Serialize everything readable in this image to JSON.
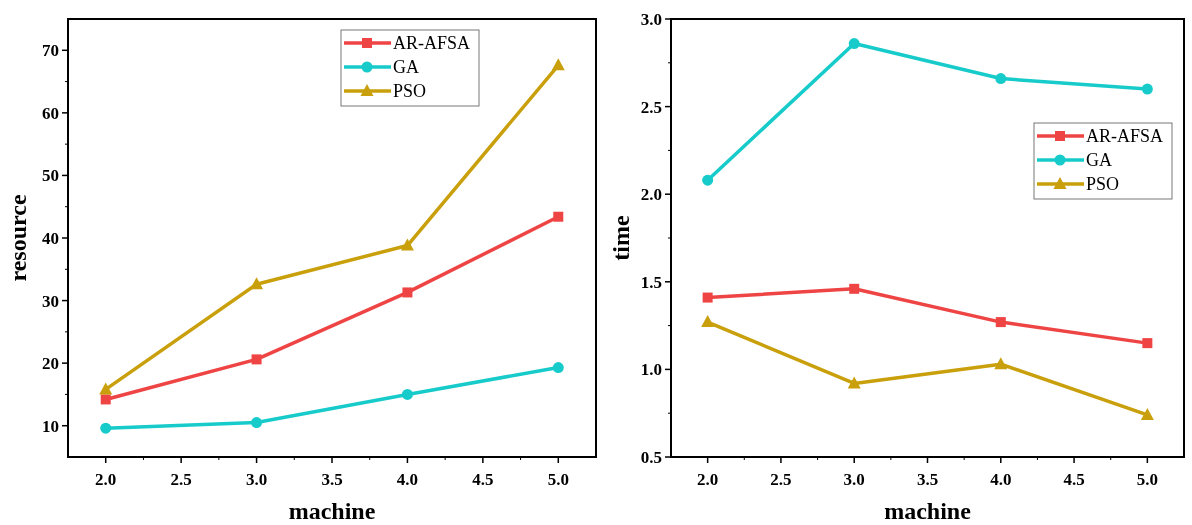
{
  "chart_data": [
    {
      "type": "line",
      "xlabel": "machine",
      "ylabel": "resource",
      "x": [
        2,
        3,
        4,
        5
      ],
      "xlim": [
        1.75,
        5.25
      ],
      "xticks": [
        {
          "value": 2,
          "label": "2.0"
        },
        {
          "value": 2.5,
          "label": "2.5"
        },
        {
          "value": 3,
          "label": "3.0"
        },
        {
          "value": 3.5,
          "label": "3.5"
        },
        {
          "value": 4,
          "label": "4.0"
        },
        {
          "value": 4.5,
          "label": "4.5"
        },
        {
          "value": 5,
          "label": "5.0"
        }
      ],
      "ylim": [
        5,
        75
      ],
      "yticks": [
        10,
        20,
        30,
        40,
        50,
        60,
        70
      ],
      "legend": "top right",
      "grid": false,
      "series": [
        {
          "name": "AR-AFSA",
          "color": "#ef4444",
          "marker": "square",
          "values": [
            14.2,
            20.6,
            31.3,
            43.4
          ]
        },
        {
          "name": "GA",
          "color": "#17cbcb",
          "marker": "circle",
          "values": [
            9.6,
            10.5,
            15.0,
            19.3
          ]
        },
        {
          "name": "PSO",
          "color": "#c9a00c",
          "marker": "triangle",
          "values": [
            15.8,
            32.6,
            38.8,
            67.6
          ]
        }
      ]
    },
    {
      "type": "line",
      "xlabel": "machine",
      "ylabel": "time",
      "x": [
        2,
        3,
        4,
        5
      ],
      "xlim": [
        1.75,
        5.25
      ],
      "xticks": [
        {
          "value": 2,
          "label": "2.0"
        },
        {
          "value": 2.5,
          "label": "2.5"
        },
        {
          "value": 3,
          "label": "3.0"
        },
        {
          "value": 3.5,
          "label": "3.5"
        },
        {
          "value": 4,
          "label": "4.0"
        },
        {
          "value": 4.5,
          "label": "4.5"
        },
        {
          "value": 5,
          "label": "5.0"
        }
      ],
      "ylim": [
        0.5,
        3.0
      ],
      "yticks": [
        {
          "value": 0.5,
          "label": "0.5"
        },
        {
          "value": 1,
          "label": "1.0"
        },
        {
          "value": 1.5,
          "label": "1.5"
        },
        {
          "value": 2,
          "label": "2.0"
        },
        {
          "value": 2.5,
          "label": "2.5"
        },
        {
          "value": 3,
          "label": "3.0"
        }
      ],
      "legend": "right",
      "grid": false,
      "series": [
        {
          "name": "AR-AFSA",
          "color": "#ef4444",
          "marker": "square",
          "values": [
            1.41,
            1.46,
            1.27,
            1.15
          ]
        },
        {
          "name": "GA",
          "color": "#17cbcb",
          "marker": "circle",
          "values": [
            2.08,
            2.86,
            2.66,
            2.6
          ]
        },
        {
          "name": "PSO",
          "color": "#c9a00c",
          "marker": "triangle",
          "values": [
            1.27,
            0.92,
            1.03,
            0.74
          ]
        }
      ]
    }
  ]
}
